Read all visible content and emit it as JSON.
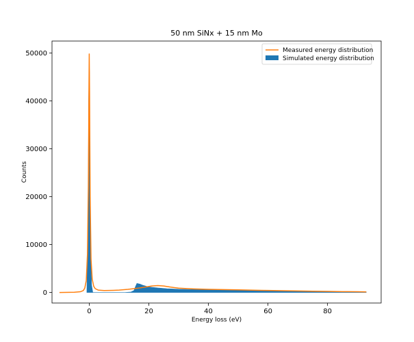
{
  "chart_data": {
    "type": "area",
    "title": "50 nm SiNx + 15 nm Mo",
    "xlabel": "Energy loss (eV)",
    "ylabel": "Counts",
    "xlim": [
      -12.5,
      98
    ],
    "ylim": [
      -2200,
      52500
    ],
    "xticks": [
      0,
      20,
      40,
      60,
      80
    ],
    "yticks": [
      0,
      10000,
      20000,
      30000,
      40000,
      50000
    ],
    "grid": false,
    "legend_position": "top-right",
    "series": [
      {
        "name": "Measured energy distribution",
        "kind": "line",
        "color": "#ff7f0e",
        "x": [
          -10,
          -5,
          -3,
          -2,
          -1.5,
          -1,
          -0.6,
          -0.3,
          -0.1,
          0,
          0.1,
          0.3,
          0.6,
          1,
          1.5,
          2,
          3,
          5,
          8,
          10,
          13,
          15,
          17,
          19,
          21,
          23,
          25,
          27,
          30,
          35,
          40,
          45,
          50,
          55,
          60,
          65,
          70,
          75,
          80,
          85,
          90,
          93
        ],
        "y": [
          0,
          50,
          150,
          400,
          900,
          2500,
          8000,
          22000,
          42000,
          49800,
          42000,
          20000,
          7000,
          2800,
          1300,
          800,
          500,
          400,
          450,
          500,
          650,
          800,
          950,
          1150,
          1350,
          1450,
          1350,
          1150,
          900,
          750,
          650,
          600,
          550,
          480,
          420,
          370,
          320,
          270,
          220,
          180,
          150,
          120
        ]
      },
      {
        "name": "Simulated energy distribution",
        "kind": "filled",
        "color": "#1f77b4",
        "x": [
          -0.8,
          -0.6,
          -0.4,
          -0.3,
          -0.2,
          -0.1,
          0,
          0.1,
          0.2,
          0.3,
          0.4,
          0.6,
          0.8,
          1.2,
          2,
          8,
          12,
          14,
          15,
          15.5,
          16,
          17,
          18,
          20,
          23,
          26,
          30,
          35,
          40,
          45,
          50,
          55,
          60,
          65,
          70,
          75,
          80,
          85,
          90,
          93
        ],
        "y": [
          0,
          9500,
          15000,
          26000,
          40000,
          44000,
          48500,
          46000,
          31000,
          18000,
          12000,
          6000,
          1500,
          0,
          0,
          0,
          0,
          100,
          400,
          1200,
          1900,
          1750,
          1500,
          1150,
          950,
          800,
          680,
          620,
          560,
          520,
          480,
          420,
          380,
          330,
          290,
          250,
          210,
          170,
          140,
          110
        ]
      }
    ]
  }
}
